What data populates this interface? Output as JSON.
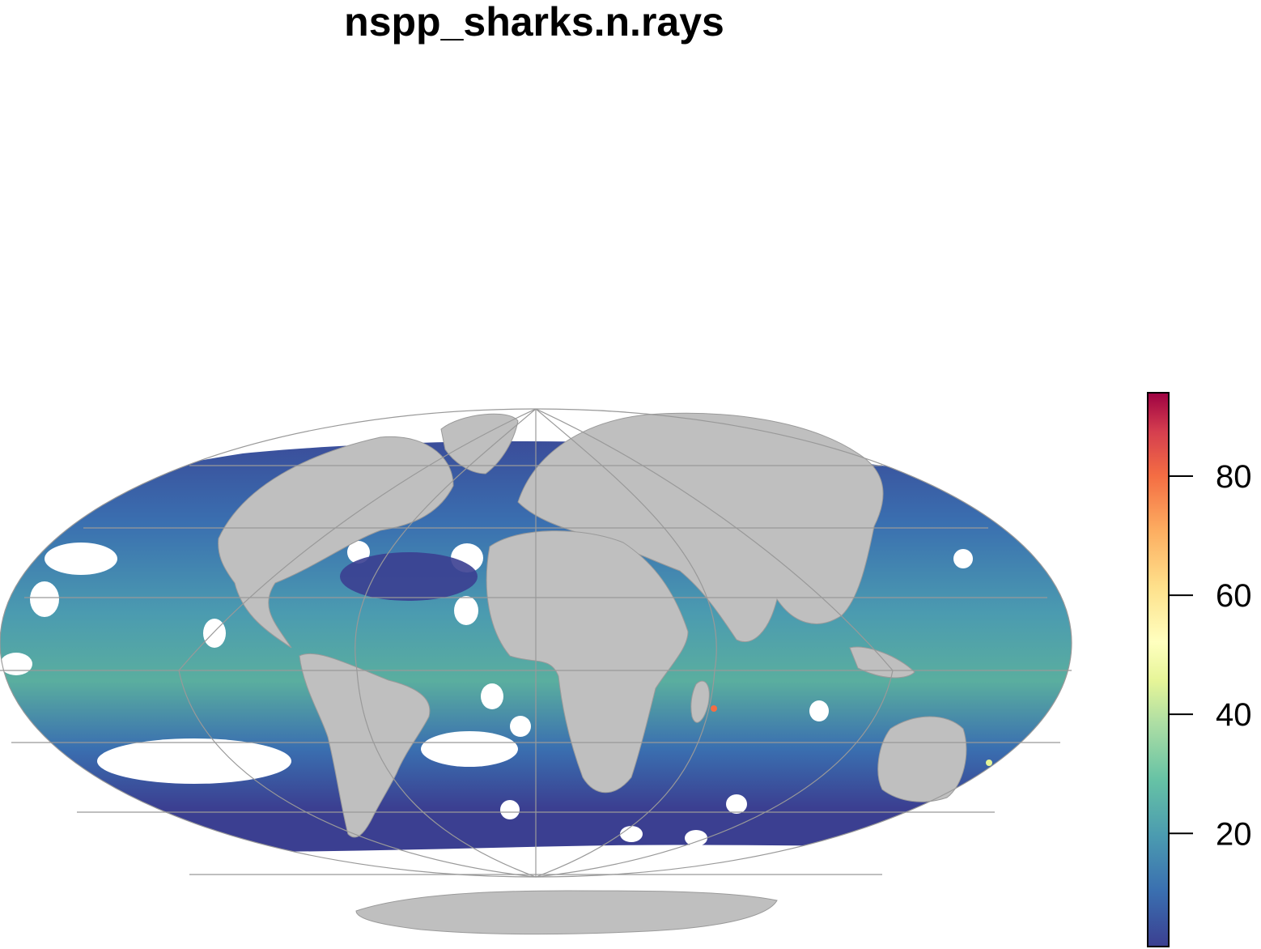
{
  "title": "nspp_sharks.n.rays",
  "colors": {
    "land": "#bfbfbf",
    "land_border": "#9a9a9a",
    "graticule": "#999999",
    "no_data": "#ffffff",
    "palette": [
      "#3b3f91",
      "#3a6fb0",
      "#4b9bb0",
      "#66c2a5",
      "#abdda4",
      "#e6f598",
      "#ffffbf",
      "#fee08b",
      "#fdae61",
      "#f46d43",
      "#d53e4f",
      "#9e0142"
    ]
  },
  "legend": {
    "min": 1,
    "max": 94,
    "ticks": [
      {
        "value": 20,
        "label": "20"
      },
      {
        "value": 40,
        "label": "40"
      },
      {
        "value": 60,
        "label": "60"
      },
      {
        "value": 80,
        "label": "80"
      }
    ]
  }
}
